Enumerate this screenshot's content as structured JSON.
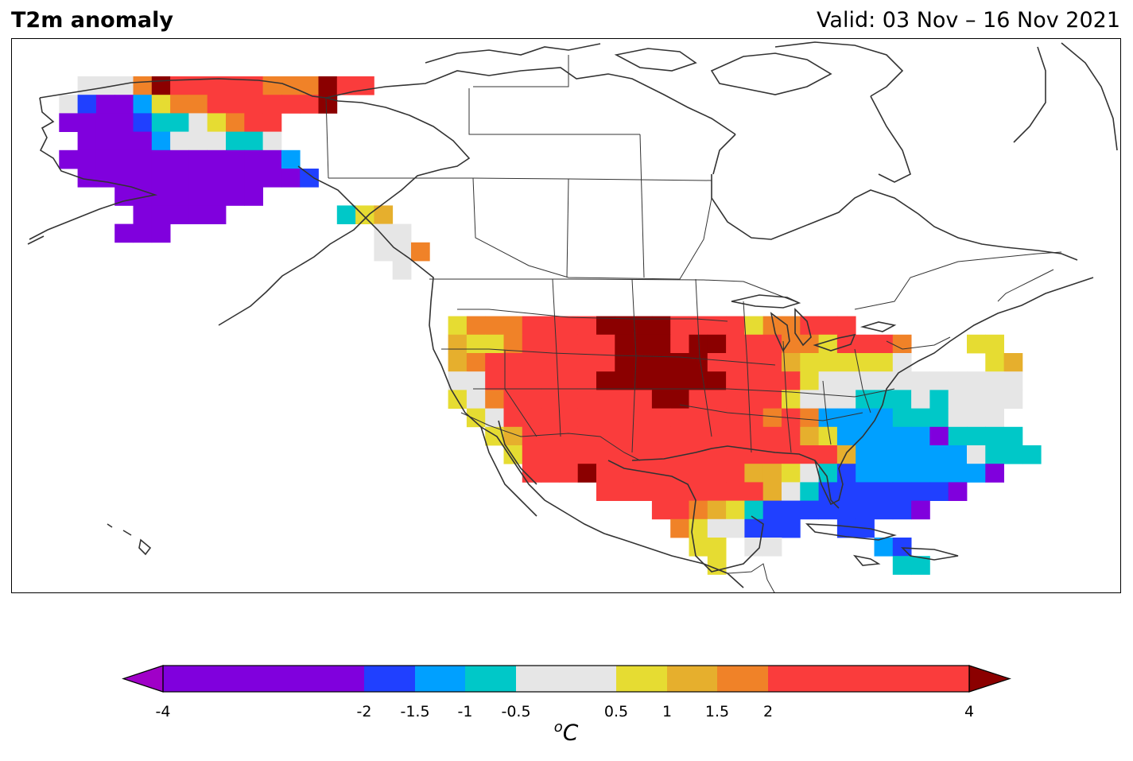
{
  "header": {
    "title": "T2m anomaly",
    "valid": "Valid: 03 Nov – 16 Nov 2021"
  },
  "colorbar": {
    "unit_prefix": "o",
    "unit_main": "C",
    "ticks": [
      "-4",
      "-2",
      "-1.5",
      "-1",
      "-0.5",
      "0.5",
      "1",
      "1.5",
      "2",
      "4"
    ],
    "tick_values": [
      -4,
      -2,
      -1.5,
      -1,
      -0.5,
      0.5,
      1,
      1.5,
      2,
      4
    ],
    "bins": [
      {
        "from": -4,
        "to": -2,
        "color": "#8000dd"
      },
      {
        "from": -2,
        "to": -1.5,
        "color": "#2040ff"
      },
      {
        "from": -1.5,
        "to": -1,
        "color": "#00a0ff"
      },
      {
        "from": -1,
        "to": -0.5,
        "color": "#00c8c8"
      },
      {
        "from": -0.5,
        "to": 0.5,
        "color": "#e6e6e6"
      },
      {
        "from": 0.5,
        "to": 1,
        "color": "#e6dc32"
      },
      {
        "from": 1,
        "to": 1.5,
        "color": "#e6af2d"
      },
      {
        "from": 1.5,
        "to": 2,
        "color": "#f08228"
      },
      {
        "from": 2,
        "to": 4,
        "color": "#fa3c3c"
      }
    ],
    "under_color": "#a000c8",
    "over_color": "#8b0000"
  },
  "map": {
    "region": "North America",
    "coastline_color": "#333333"
  }
}
